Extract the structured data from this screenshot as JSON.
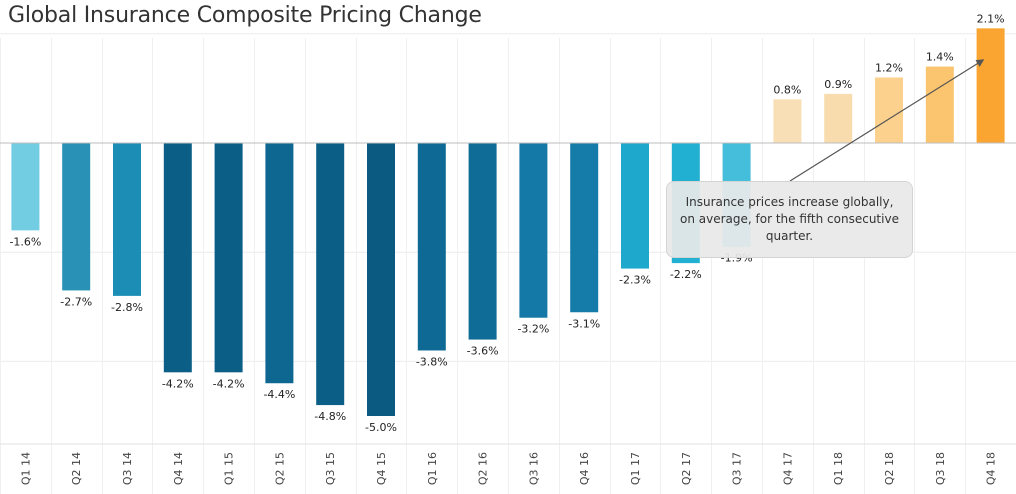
{
  "chart_data": {
    "type": "bar",
    "title": "Global Insurance Composite Pricing Change",
    "categories": [
      "Q1 14",
      "Q2 14",
      "Q3 14",
      "Q4 14",
      "Q1 15",
      "Q2 15",
      "Q3 15",
      "Q4 15",
      "Q1 16",
      "Q2 16",
      "Q3 16",
      "Q4 16",
      "Q1 17",
      "Q2 17",
      "Q3 17",
      "Q4 17",
      "Q1 18",
      "Q2 18",
      "Q3 18",
      "Q4 18"
    ],
    "values": [
      -1.6,
      -2.7,
      -2.8,
      -4.2,
      -4.2,
      -4.4,
      -4.8,
      -5.0,
      -3.8,
      -3.6,
      -3.2,
      -3.1,
      -2.3,
      -2.2,
      -1.9,
      0.8,
      0.9,
      1.2,
      1.4,
      2.1
    ],
    "value_labels": [
      "-1.6%",
      "-2.7%",
      "-2.8%",
      "-4.2%",
      "-4.2%",
      "-4.4%",
      "-4.8%",
      "-5.0%",
      "-3.8%",
      "-3.6%",
      "-3.2%",
      "-3.1%",
      "-2.3%",
      "-2.2%",
      "-1.9%",
      "0.8%",
      "0.9%",
      "1.2%",
      "1.4%",
      "2.1%"
    ],
    "colors": [
      "#73cde2",
      "#2891b5",
      "#1c8db5",
      "#0b5f87",
      "#0b5f87",
      "#0d6791",
      "#0b5e86",
      "#0b5a82",
      "#0e6a94",
      "#0e6c96",
      "#1479a6",
      "#157ba8",
      "#1ea8cc",
      "#21b0d2",
      "#45bedb",
      "#f8dfb6",
      "#f8dcae",
      "#fbd18d",
      "#fbc56f",
      "#faa531"
    ],
    "ylim": [
      -5.5,
      2.1
    ],
    "grid": true,
    "legend": "none",
    "xlabel": "",
    "ylabel": "",
    "annotation": {
      "text": "Insurance prices increase globally, on average, for the fifth consecutive quarter.",
      "points_to": "Q4 18"
    }
  }
}
